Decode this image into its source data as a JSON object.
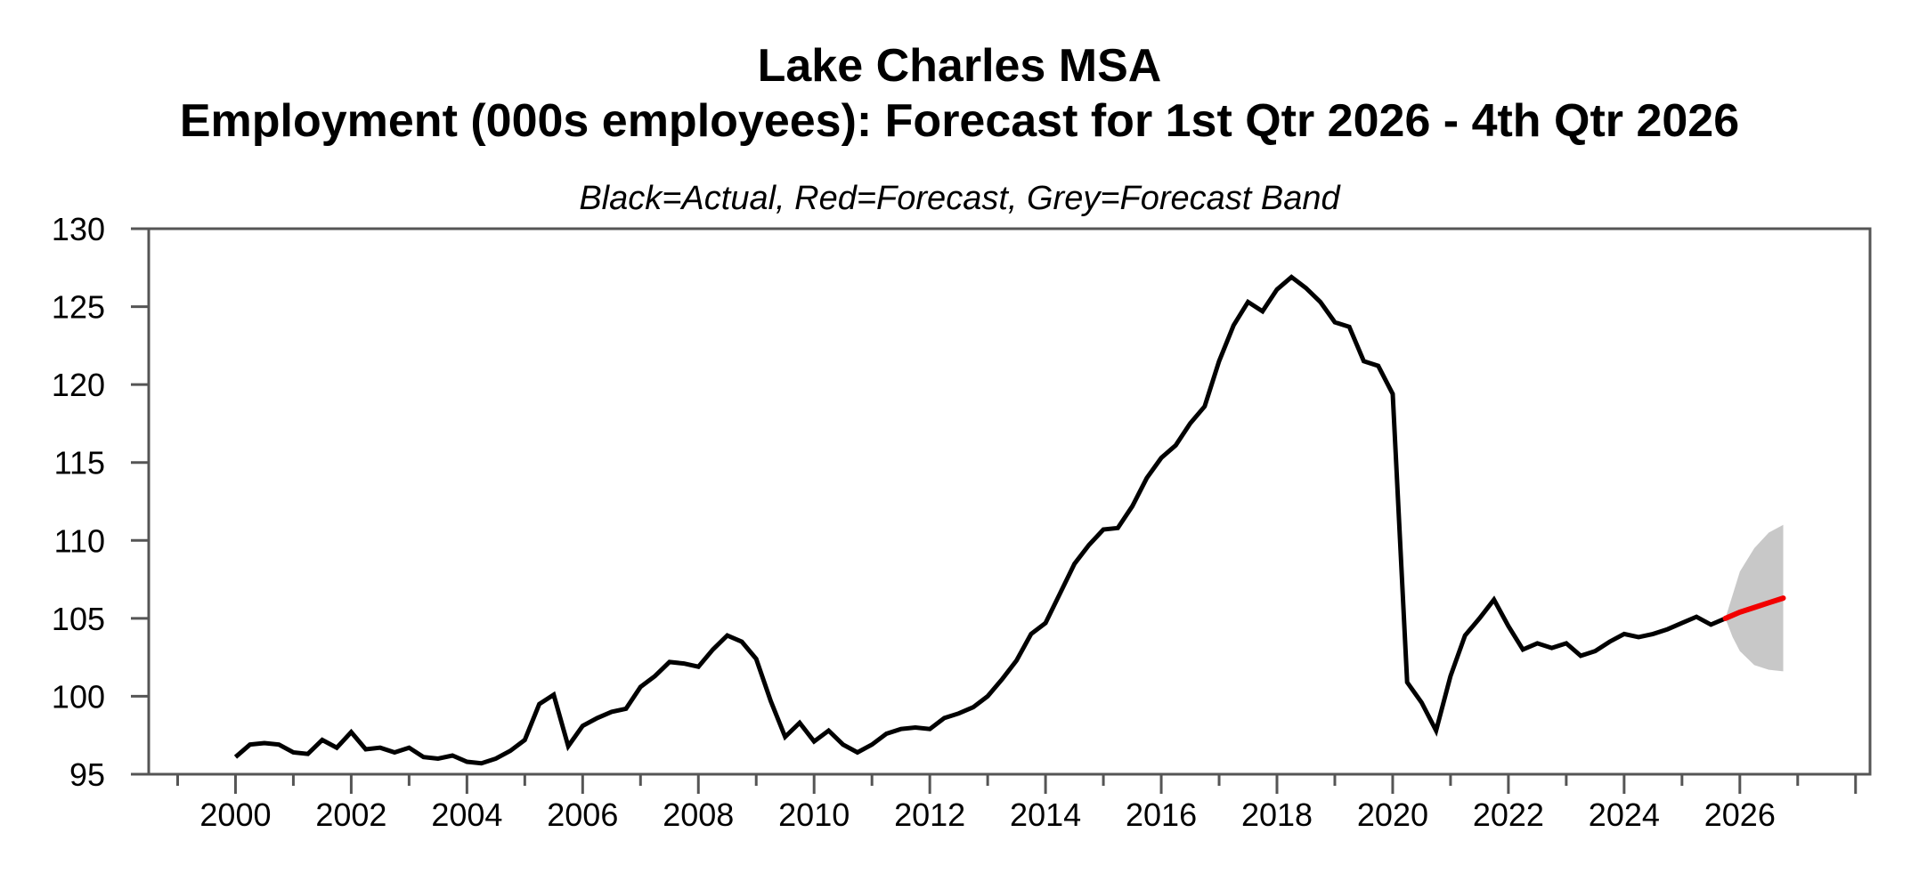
{
  "header": {
    "title_line1": "Lake Charles MSA",
    "title_line2": "Employment (000s employees): Forecast for 1st Qtr 2026 - 4th Qtr 2026",
    "subtitle": "Black=Actual, Red=Forecast, Grey=Forecast Band"
  },
  "chart_data": {
    "type": "line",
    "title": "Lake Charles MSA",
    "subtitle": "Employment (000s employees): Forecast for 1st Qtr 2026 - 4th Qtr 2026",
    "legend_note": "Black=Actual, Red=Forecast, Grey=Forecast Band",
    "grid": false,
    "legend_position": "none",
    "x_axis": {
      "label_years": [
        2000,
        2002,
        2004,
        2006,
        2008,
        2010,
        2012,
        2014,
        2016,
        2018,
        2020,
        2022,
        2024,
        2026
      ],
      "minor_tick_years": [
        1999,
        2001,
        2003,
        2005,
        2007,
        2009,
        2011,
        2013,
        2015,
        2017,
        2019,
        2021,
        2023,
        2025,
        2027
      ],
      "extra_major_tick_years": [
        2028
      ],
      "range": [
        1998.5,
        2028.25
      ]
    },
    "y_axis": {
      "tick_values": [
        95,
        100,
        105,
        110,
        115,
        120,
        125,
        130
      ],
      "range": [
        95,
        130
      ]
    },
    "series": [
      {
        "name": "Actual",
        "color": "#000000",
        "x_start": 2000.0,
        "x_step": 0.25,
        "values": [
          96.1,
          96.9,
          97.0,
          96.9,
          96.4,
          96.3,
          97.2,
          96.7,
          97.7,
          96.6,
          96.7,
          96.4,
          96.7,
          96.1,
          96.0,
          96.2,
          95.8,
          95.7,
          96.0,
          96.5,
          97.2,
          99.5,
          100.1,
          96.8,
          98.1,
          98.6,
          99.0,
          99.2,
          100.6,
          101.3,
          102.2,
          102.1,
          101.9,
          103.0,
          103.9,
          103.5,
          102.4,
          99.7,
          97.4,
          98.3,
          97.1,
          97.8,
          96.9,
          96.4,
          96.9,
          97.6,
          97.9,
          98.0,
          97.9,
          98.6,
          98.9,
          99.3,
          100.0,
          101.1,
          102.3,
          104.0,
          104.7,
          106.6,
          108.5,
          109.7,
          110.7,
          110.8,
          112.2,
          114.0,
          115.3,
          116.1,
          117.5,
          118.6,
          121.5,
          123.8,
          125.3,
          124.7,
          126.1,
          126.9,
          126.2,
          125.3,
          124.0,
          123.7,
          121.5,
          121.2,
          119.4,
          100.9,
          99.6,
          97.8,
          101.3,
          103.9,
          105.0,
          106.2,
          104.5,
          103.0,
          103.4,
          103.1,
          103.4,
          102.6,
          102.9,
          103.5,
          104.0,
          103.8,
          104.0,
          104.3,
          104.7,
          105.1,
          104.6,
          105.0
        ]
      },
      {
        "name": "Forecast",
        "color": "#f20000",
        "x": [
          2025.75,
          2026.0,
          2026.25,
          2026.5,
          2026.75
        ],
        "values": [
          105.0,
          105.4,
          105.7,
          106.0,
          106.3
        ]
      }
    ],
    "forecast_band": {
      "name": "Forecast Band",
      "color": "#c8c8c8",
      "x": [
        2025.75,
        2025.875,
        2026.0,
        2026.25,
        2026.5,
        2026.75
      ],
      "upper": [
        105.0,
        106.5,
        108.0,
        109.5,
        110.5,
        111.0
      ],
      "lower": [
        105.0,
        103.8,
        102.9,
        102.0,
        101.7,
        101.6
      ]
    }
  },
  "colors": {
    "actual": "#000000",
    "forecast": "#f20000",
    "band": "#c8c8c8",
    "axis": "#555555",
    "text": "#000000",
    "background": "#ffffff"
  }
}
